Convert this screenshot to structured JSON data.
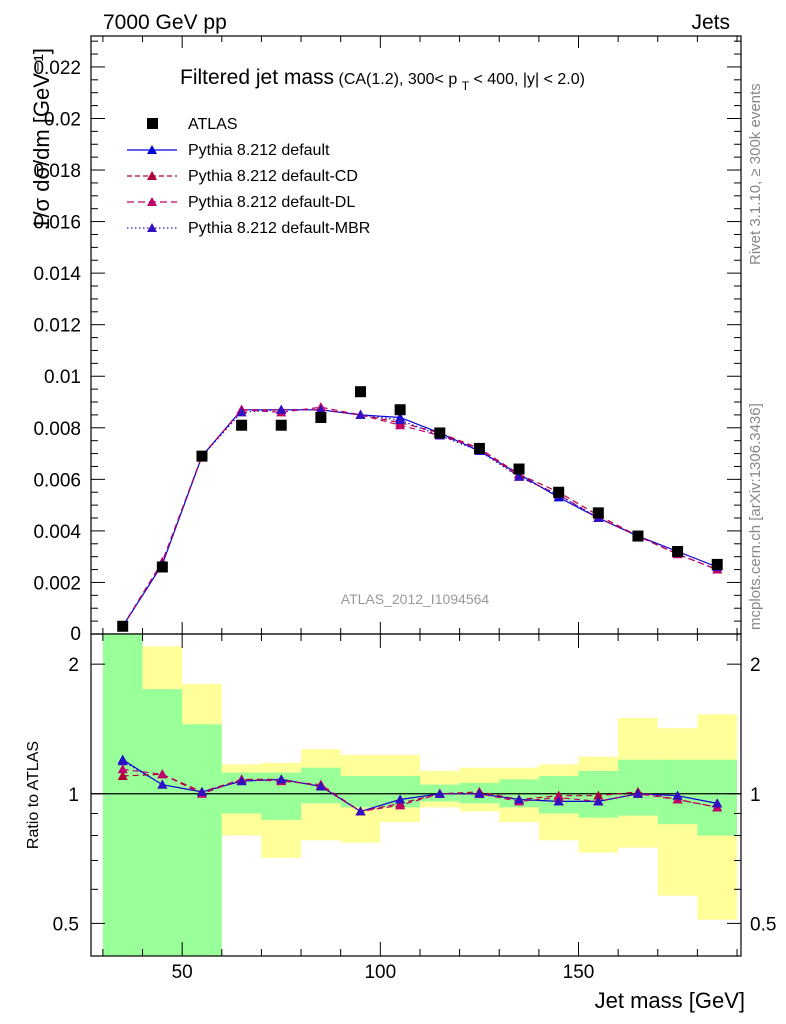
{
  "header": {
    "left": "7000 GeV pp",
    "right": "Jets"
  },
  "side_labels": {
    "rivet": "Rivet 3.1.10, ≥ 300k events",
    "mcplots": "mcplots.cern.ch [arXiv:1306.3436]"
  },
  "analysis_ref": "ATLAS_2012_I1094564",
  "chart_data": [
    {
      "type": "scatter",
      "panel": "main",
      "title": "Filtered jet mass",
      "title_suffix": "(CA(1.2), 300< p_T < 400, |y| < 2.0)",
      "title_suffix_parts": [
        "(CA(1.2), 300< p",
        "T",
        " < 400, |y| < 2.0)"
      ],
      "ylabel": "1/σ dσ/dm [GeV⁻¹]",
      "xlabel": "",
      "xlim": [
        27,
        191
      ],
      "ylim": [
        0,
        0.0232
      ],
      "xticks": [
        50,
        100,
        150
      ],
      "yticks": [
        0.002,
        0.004,
        0.006,
        0.008,
        0.01,
        0.012,
        0.014,
        0.016,
        0.018,
        0.02,
        0.022
      ],
      "ytick_labels": [
        "0.002",
        "0.004",
        "0.006",
        "0.008",
        "0.01",
        "0.012",
        "0.014",
        "0.016",
        "0.018",
        "0.02",
        "0.022"
      ],
      "y_zero_label": "0",
      "legend_position": "top-left",
      "x": [
        35,
        45,
        55,
        65,
        75,
        85,
        95,
        105,
        115,
        125,
        135,
        145,
        155,
        165,
        175,
        185
      ],
      "series": [
        {
          "name": "ATLAS",
          "style": "data",
          "color": "#000000",
          "values": [
            0.0003,
            0.0026,
            0.0069,
            0.0081,
            0.0081,
            0.0084,
            0.0094,
            0.0087,
            0.0078,
            0.0072,
            0.0064,
            0.0055,
            0.0047,
            0.0038,
            0.0032,
            0.0027
          ]
        },
        {
          "name": "Pythia 8.212 default",
          "style": "solid",
          "color": "#0000dd",
          "values": [
            0.0003,
            0.0027,
            0.0069,
            0.0087,
            0.0087,
            0.0087,
            0.0085,
            0.0084,
            0.0078,
            0.0071,
            0.0062,
            0.0053,
            0.0045,
            0.0038,
            0.0032,
            0.0026
          ]
        },
        {
          "name": "Pythia 8.212 default-CD",
          "style": "dashed",
          "color": "#b0003a",
          "values": [
            0.0003,
            0.0028,
            0.0069,
            0.0087,
            0.0087,
            0.0087,
            0.0085,
            0.0082,
            0.0078,
            0.0072,
            0.0062,
            0.0055,
            0.0046,
            0.0038,
            0.0031,
            0.0025
          ]
        },
        {
          "name": "Pythia 8.212 default-DL",
          "style": "dashed",
          "color": "#c0006a",
          "values": [
            0.0003,
            0.0028,
            0.0069,
            0.0087,
            0.0086,
            0.0088,
            0.0085,
            0.0081,
            0.0077,
            0.0072,
            0.0061,
            0.0054,
            0.0045,
            0.0038,
            0.0031,
            0.0025
          ]
        },
        {
          "name": "Pythia 8.212 default-MBR",
          "style": "dotted",
          "color": "#3010c0",
          "values": [
            0.0003,
            0.0027,
            0.0069,
            0.0086,
            0.0087,
            0.0087,
            0.0085,
            0.0083,
            0.0077,
            0.0071,
            0.0061,
            0.0054,
            0.0045,
            0.0038,
            0.0032,
            0.0026
          ]
        }
      ]
    },
    {
      "type": "scatter",
      "panel": "ratio",
      "ylabel": "Ratio to ATLAS",
      "xlabel": "Jet mass [GeV]",
      "xlim": [
        27,
        191
      ],
      "y_scale": "log",
      "ylim": [
        0.42,
        2.35
      ],
      "xticks": [
        50,
        100,
        150
      ],
      "xtick_labels": [
        "50",
        "100",
        "150"
      ],
      "yticks": [
        0.5,
        1,
        2
      ],
      "ytick_labels": [
        "0.5",
        "1",
        "2"
      ],
      "bin_edges": [
        30,
        40,
        50,
        60,
        70,
        80,
        90,
        100,
        110,
        120,
        130,
        140,
        150,
        160,
        170,
        180,
        190
      ],
      "band_colors": {
        "stat": "#99ff99",
        "total": "#ffff99"
      },
      "band_stat": [
        [
          0.4,
          2.35
        ],
        [
          0.4,
          1.75
        ],
        [
          0.4,
          1.45
        ],
        [
          0.9,
          1.12
        ],
        [
          0.87,
          1.12
        ],
        [
          0.95,
          1.15
        ],
        [
          0.93,
          1.1
        ],
        [
          0.93,
          1.1
        ],
        [
          0.96,
          1.05
        ],
        [
          0.95,
          1.06
        ],
        [
          0.93,
          1.08
        ],
        [
          0.9,
          1.1
        ],
        [
          0.88,
          1.13
        ],
        [
          0.89,
          1.2
        ],
        [
          0.85,
          1.2
        ],
        [
          0.8,
          1.2
        ]
      ],
      "band_total": [
        [
          0.4,
          2.35
        ],
        [
          0.4,
          2.2
        ],
        [
          0.73,
          1.8
        ],
        [
          0.8,
          1.17
        ],
        [
          0.71,
          1.18
        ],
        [
          0.78,
          1.27
        ],
        [
          0.77,
          1.23
        ],
        [
          0.86,
          1.23
        ],
        [
          0.93,
          1.13
        ],
        [
          0.91,
          1.15
        ],
        [
          0.86,
          1.15
        ],
        [
          0.78,
          1.17
        ],
        [
          0.73,
          1.22
        ],
        [
          0.75,
          1.5
        ],
        [
          0.58,
          1.42
        ],
        [
          0.51,
          1.53
        ]
      ],
      "x": [
        35,
        45,
        55,
        65,
        75,
        85,
        95,
        105,
        115,
        125,
        135,
        145,
        155,
        165,
        175,
        185
      ],
      "series": [
        {
          "name": "Pythia 8.212 default",
          "style": "solid",
          "color": "#0000dd",
          "values": [
            1.2,
            1.05,
            1.01,
            1.07,
            1.08,
            1.04,
            0.91,
            0.97,
            1.0,
            1.0,
            0.97,
            0.96,
            0.96,
            1.0,
            0.99,
            0.95
          ]
        },
        {
          "name": "Pythia 8.212 default-CD",
          "style": "dashed",
          "color": "#b0003a",
          "values": [
            1.1,
            1.11,
            1.01,
            1.08,
            1.08,
            1.04,
            0.91,
            0.95,
            1.0,
            1.01,
            0.97,
            0.99,
            0.99,
            1.01,
            0.97,
            0.93
          ]
        },
        {
          "name": "Pythia 8.212 default-DL",
          "style": "dashed",
          "color": "#c0006a",
          "values": [
            1.14,
            1.11,
            1.0,
            1.08,
            1.07,
            1.05,
            0.91,
            0.94,
            1.0,
            1.0,
            0.96,
            0.98,
            0.96,
            1.0,
            0.97,
            0.93
          ]
        },
        {
          "name": "Pythia 8.212 default-MBR",
          "style": "dotted",
          "color": "#3010c0",
          "values": [
            1.19,
            1.05,
            1.01,
            1.07,
            1.08,
            1.04,
            0.91,
            0.97,
            1.0,
            1.0,
            0.97,
            0.96,
            0.96,
            1.0,
            0.99,
            0.95
          ]
        }
      ]
    }
  ]
}
